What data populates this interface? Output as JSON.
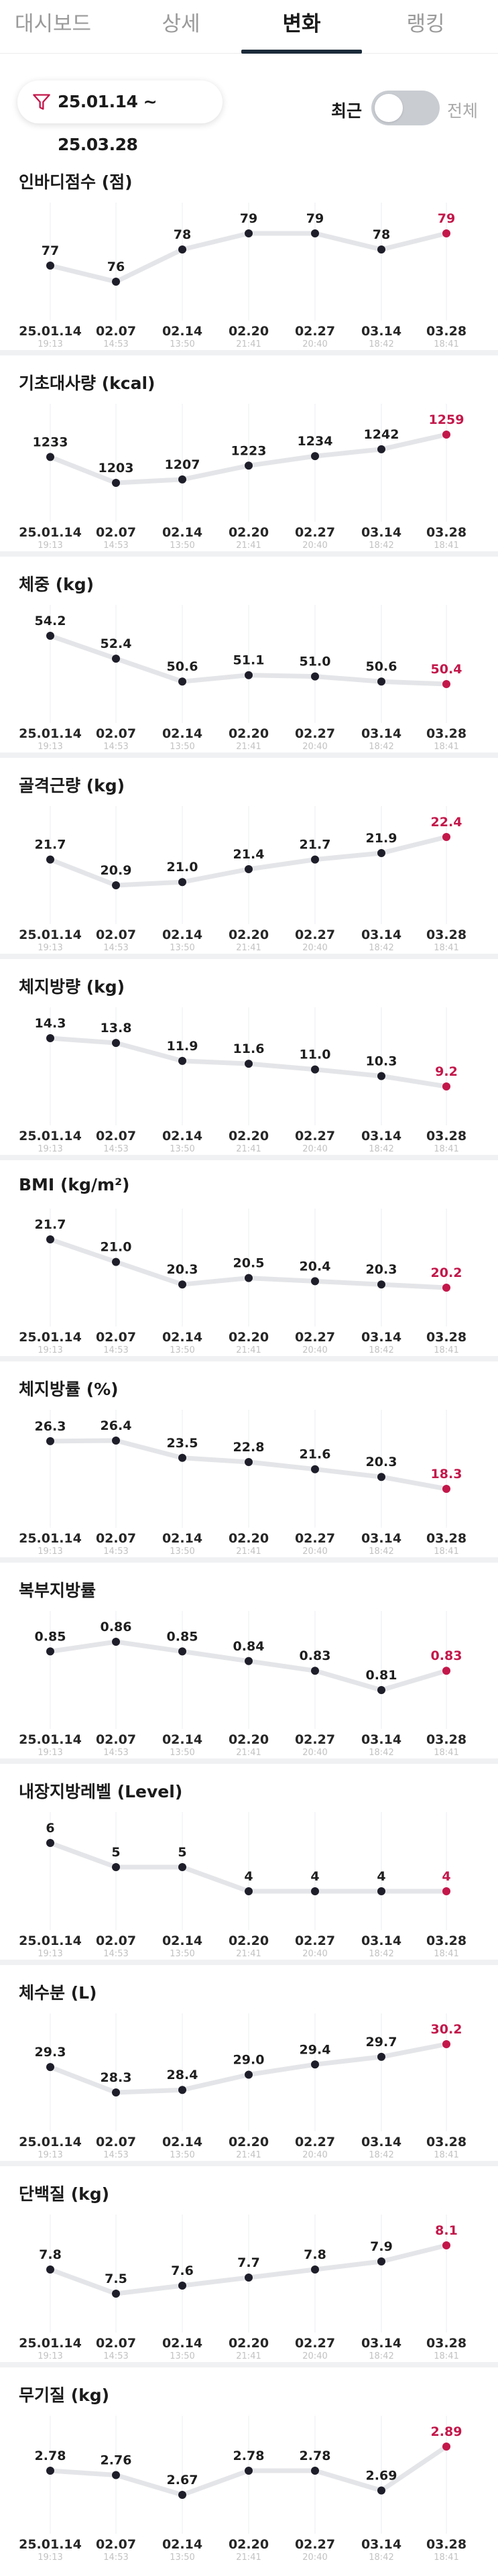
{
  "tabs": [
    {
      "label": "대시보드",
      "active": false
    },
    {
      "label": "상세",
      "active": false
    },
    {
      "label": "변화",
      "active": true
    },
    {
      "label": "랭킹",
      "active": false
    }
  ],
  "filter": {
    "date_range": "25.01.14 ~ 25.03.28",
    "icon": "filter-icon"
  },
  "toggle": {
    "recent_label": "최근",
    "all_label": "전체",
    "state": "off"
  },
  "colors": {
    "accent": "#c3174a",
    "point": "#1e1e2a",
    "line": "#e4e5e8",
    "divider": "#f0f1f3"
  },
  "x_dates": [
    "25.01.14",
    "02.07",
    "02.14",
    "02.20",
    "02.27",
    "03.14",
    "03.28"
  ],
  "x_times": [
    "19:13",
    "14:53",
    "13:50",
    "21:41",
    "20:40",
    "18:42",
    "18:41"
  ],
  "chart_data": [
    {
      "type": "line",
      "title": "인바디점수 (점)",
      "x": [
        "25.01.14",
        "02.07",
        "02.14",
        "02.20",
        "02.27",
        "03.14",
        "03.28"
      ],
      "values": [
        77,
        76,
        78,
        79,
        79,
        78,
        79
      ],
      "labels": [
        "77",
        "76",
        "78",
        "79",
        "79",
        "78",
        "79"
      ]
    },
    {
      "type": "line",
      "title": "기초대사량 (kcal)",
      "x": [
        "25.01.14",
        "02.07",
        "02.14",
        "02.20",
        "02.27",
        "03.14",
        "03.28"
      ],
      "values": [
        1233,
        1203,
        1207,
        1223,
        1234,
        1242,
        1259
      ],
      "labels": [
        "1233",
        "1203",
        "1207",
        "1223",
        "1234",
        "1242",
        "1259"
      ]
    },
    {
      "type": "line",
      "title": "체중 (kg)",
      "x": [
        "25.01.14",
        "02.07",
        "02.14",
        "02.20",
        "02.27",
        "03.14",
        "03.28"
      ],
      "values": [
        54.2,
        52.4,
        50.6,
        51.1,
        51.0,
        50.6,
        50.4
      ],
      "labels": [
        "54.2",
        "52.4",
        "50.6",
        "51.1",
        "51.0",
        "50.6",
        "50.4"
      ]
    },
    {
      "type": "line",
      "title": "골격근량 (kg)",
      "x": [
        "25.01.14",
        "02.07",
        "02.14",
        "02.20",
        "02.27",
        "03.14",
        "03.28"
      ],
      "values": [
        21.7,
        20.9,
        21.0,
        21.4,
        21.7,
        21.9,
        22.4
      ],
      "labels": [
        "21.7",
        "20.9",
        "21.0",
        "21.4",
        "21.7",
        "21.9",
        "22.4"
      ]
    },
    {
      "type": "line",
      "title": "체지방량 (kg)",
      "x": [
        "25.01.14",
        "02.07",
        "02.14",
        "02.20",
        "02.27",
        "03.14",
        "03.28"
      ],
      "values": [
        14.3,
        13.8,
        11.9,
        11.6,
        11.0,
        10.3,
        9.2
      ],
      "labels": [
        "14.3",
        "13.8",
        "11.9",
        "11.6",
        "11.0",
        "10.3",
        "9.2"
      ]
    },
    {
      "type": "line",
      "title": "BMI (kg/m²)",
      "x": [
        "25.01.14",
        "02.07",
        "02.14",
        "02.20",
        "02.27",
        "03.14",
        "03.28"
      ],
      "values": [
        21.7,
        21.0,
        20.3,
        20.5,
        20.4,
        20.3,
        20.2
      ],
      "labels": [
        "21.7",
        "21.0",
        "20.3",
        "20.5",
        "20.4",
        "20.3",
        "20.2"
      ]
    },
    {
      "type": "line",
      "title": "체지방률 (%)",
      "x": [
        "25.01.14",
        "02.07",
        "02.14",
        "02.20",
        "02.27",
        "03.14",
        "03.28"
      ],
      "values": [
        26.3,
        26.4,
        23.5,
        22.8,
        21.6,
        20.3,
        18.3
      ],
      "labels": [
        "26.3",
        "26.4",
        "23.5",
        "22.8",
        "21.6",
        "20.3",
        "18.3"
      ]
    },
    {
      "type": "line",
      "title": "복부지방률",
      "x": [
        "25.01.14",
        "02.07",
        "02.14",
        "02.20",
        "02.27",
        "03.14",
        "03.28"
      ],
      "values": [
        0.85,
        0.86,
        0.85,
        0.84,
        0.83,
        0.81,
        0.83
      ],
      "labels": [
        "0.85",
        "0.86",
        "0.85",
        "0.84",
        "0.83",
        "0.81",
        "0.83"
      ]
    },
    {
      "type": "line",
      "title": "내장지방레벨 (Level)",
      "x": [
        "25.01.14",
        "02.07",
        "02.14",
        "02.20",
        "02.27",
        "03.14",
        "03.28"
      ],
      "values": [
        6,
        5,
        5,
        4,
        4,
        4,
        4
      ],
      "labels": [
        "6",
        "5",
        "5",
        "4",
        "4",
        "4",
        "4"
      ]
    },
    {
      "type": "line",
      "title": "체수분 (L)",
      "x": [
        "25.01.14",
        "02.07",
        "02.14",
        "02.20",
        "02.27",
        "03.14",
        "03.28"
      ],
      "values": [
        29.3,
        28.3,
        28.4,
        29.0,
        29.4,
        29.7,
        30.2
      ],
      "labels": [
        "29.3",
        "28.3",
        "28.4",
        "29.0",
        "29.4",
        "29.7",
        "30.2"
      ]
    },
    {
      "type": "line",
      "title": "단백질 (kg)",
      "x": [
        "25.01.14",
        "02.07",
        "02.14",
        "02.20",
        "02.27",
        "03.14",
        "03.28"
      ],
      "values": [
        7.8,
        7.5,
        7.6,
        7.7,
        7.8,
        7.9,
        8.1
      ],
      "labels": [
        "7.8",
        "7.5",
        "7.6",
        "7.7",
        "7.8",
        "7.9",
        "8.1"
      ]
    },
    {
      "type": "line",
      "title": "무기질 (kg)",
      "x": [
        "25.01.14",
        "02.07",
        "02.14",
        "02.20",
        "02.27",
        "03.14",
        "03.28"
      ],
      "values": [
        2.78,
        2.76,
        2.67,
        2.78,
        2.78,
        2.69,
        2.89
      ],
      "labels": [
        "2.78",
        "2.76",
        "2.67",
        "2.78",
        "2.78",
        "2.69",
        "2.89"
      ]
    }
  ]
}
